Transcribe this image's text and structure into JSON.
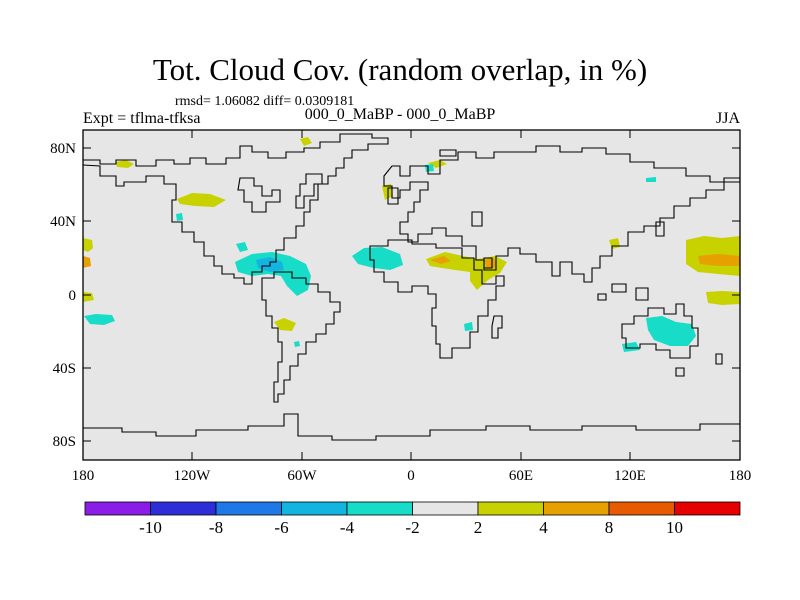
{
  "header": {
    "title": "Tot. Cloud Cov. (random overlap, in %)",
    "stats": "rmsd= 1.06082 diff= 0.0309181",
    "experiment": "Expt = tflma-tfksa",
    "period": "000_0_MaBP - 000_0_MaBP",
    "season": "JJA"
  },
  "axes": {
    "lat_ticks": [
      "80N",
      "40N",
      "0",
      "40S",
      "80S"
    ],
    "lon_ticks": [
      "180",
      "120W",
      "60W",
      "0",
      "60E",
      "120E",
      "180"
    ]
  },
  "colorbar": {
    "labels": [
      "-10",
      "-8",
      "-6",
      "-4",
      "-2",
      "2",
      "4",
      "8",
      "10"
    ],
    "colors": [
      "#8a1ee6",
      "#2e2ed8",
      "#1e78e6",
      "#14b4e0",
      "#16dcc8",
      "#e6e6e6",
      "#c8d200",
      "#e6a000",
      "#e65a00",
      "#e60000"
    ]
  },
  "colors": {
    "background": "#e6e6e6",
    "teal": "#16dcc8",
    "cyan": "#14b4e0",
    "yellow": "#c8d200",
    "orange": "#e6a000"
  }
}
